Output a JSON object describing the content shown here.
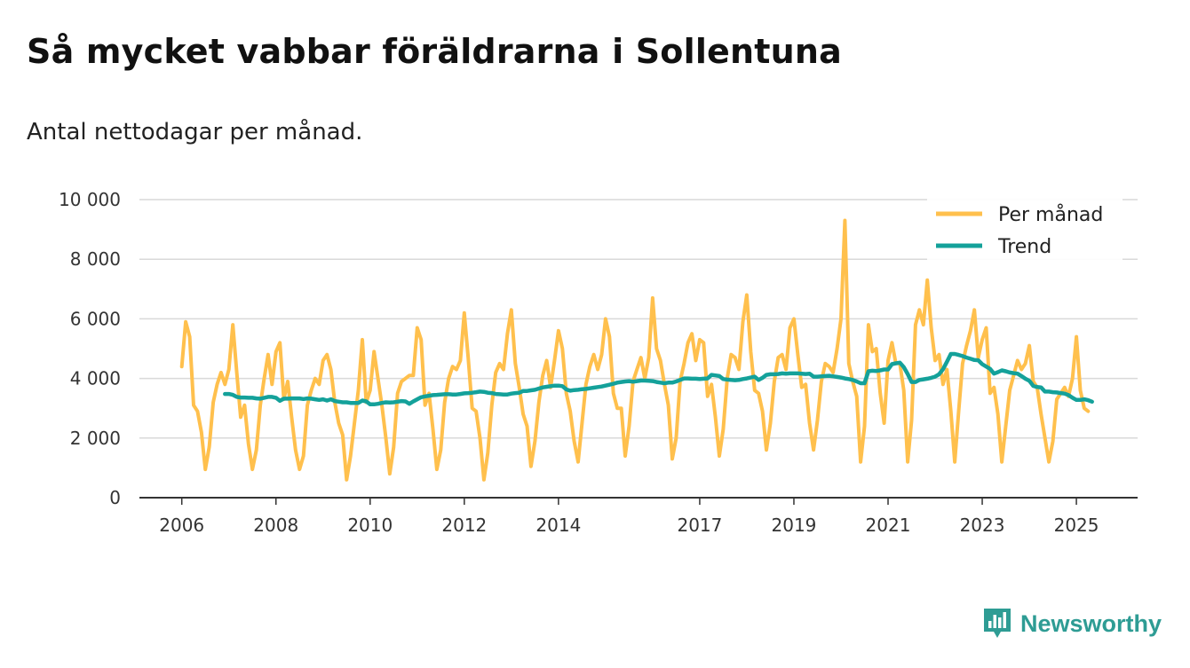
{
  "title": "Så mycket vabbar föräldrarna i Sollentuna",
  "subtitle": "Antal nettodagar per månad.",
  "brand": "Newsworthy",
  "chart_data": {
    "type": "line",
    "title": "Så mycket vabbar föräldrarna i Sollentuna",
    "subtitle": "Antal nettodagar per månad.",
    "xlabel": "",
    "ylabel": "",
    "x_ticks": [
      {
        "label": "2006",
        "year": 2006
      },
      {
        "label": "2008",
        "year": 2008
      },
      {
        "label": "2010",
        "year": 2010
      },
      {
        "label": "2012",
        "year": 2012
      },
      {
        "label": "2014",
        "year": 2014
      },
      {
        "label": "2017",
        "year": 2017
      },
      {
        "label": "2019",
        "year": 2019
      },
      {
        "label": "2021",
        "year": 2021
      },
      {
        "label": "2023",
        "year": 2023
      },
      {
        "label": "2025",
        "year": 2025
      }
    ],
    "y_ticks": [
      {
        "label": "0",
        "value": 0
      },
      {
        "label": "2 000",
        "value": 2000
      },
      {
        "label": "4 000",
        "value": 4000
      },
      {
        "label": "6 000",
        "value": 6000
      },
      {
        "label": "8 000",
        "value": 8000
      },
      {
        "label": "10 000",
        "value": 10000
      }
    ],
    "ylim": [
      0,
      10000
    ],
    "xlim": [
      2005.1,
      2026.3
    ],
    "grid": true,
    "legend_position": "top-right",
    "series": [
      {
        "name": "Per månad",
        "color": "#ffc04d",
        "x_start": 2006.0,
        "x_step": 0.0833333,
        "values": [
          4400,
          5900,
          5400,
          3100,
          2900,
          2200,
          950,
          1700,
          3200,
          3800,
          4200,
          3800,
          4300,
          5800,
          4200,
          2700,
          3100,
          1800,
          950,
          1600,
          3100,
          4000,
          4800,
          3800,
          4900,
          5200,
          3300,
          3900,
          2700,
          1600,
          950,
          1400,
          3100,
          3600,
          4000,
          3800,
          4600,
          4800,
          4300,
          3200,
          2500,
          2100,
          600,
          1400,
          2500,
          3600,
          5300,
          3200,
          3600,
          4900,
          4000,
          3100,
          2000,
          800,
          1700,
          3500,
          3900,
          4000,
          4100,
          4100,
          5700,
          5300,
          3100,
          3500,
          2300,
          950,
          1600,
          3200,
          4000,
          4400,
          4300,
          4600,
          6200,
          4700,
          3000,
          2900,
          2000,
          600,
          1500,
          3100,
          4200,
          4500,
          4300,
          5500,
          6300,
          4500,
          3700,
          2800,
          2400,
          1050,
          1900,
          3200,
          4100,
          4600,
          3700,
          4600,
          5600,
          5000,
          3500,
          2900,
          1900,
          1200,
          2500,
          3800,
          4400,
          4800,
          4300,
          4800,
          6000,
          5400,
          3500,
          3000,
          3000,
          1400,
          2400,
          3900,
          4300,
          4700,
          4000,
          4700,
          6700,
          5000,
          4600,
          3800,
          3100,
          1300,
          2000,
          3900,
          4500,
          5200,
          5500,
          4600,
          5300,
          5200,
          3400,
          3800,
          2700,
          1400,
          2300,
          4000,
          4800,
          4700,
          4300,
          5900,
          6800,
          4900,
          3600,
          3500,
          2900,
          1600,
          2500,
          3900,
          4700,
          4800,
          4300,
          5700,
          6000,
          4800,
          3700,
          3800,
          2500,
          1600,
          2600,
          3900,
          4500,
          4400,
          4200,
          5000,
          6000,
          9300,
          4500,
          3900,
          3400,
          1200,
          2400,
          5800,
          4900,
          5000,
          3500,
          2500,
          4600,
          5200,
          4500,
          4500,
          3600,
          1200,
          2600,
          5800,
          6300,
          5800,
          7300,
          5700,
          4600,
          4800,
          3800,
          4300,
          2900,
          1200,
          2900,
          4500,
          5100,
          5600,
          6300,
          4700,
          5300,
          5700,
          3500,
          3700,
          2800,
          1200,
          2400,
          3600,
          4100,
          4600,
          4300,
          4500,
          5100,
          3900,
          3700,
          2800,
          2000,
          1200,
          1900,
          3300,
          3500,
          3700,
          3400,
          4000,
          5400,
          3600,
          3000,
          2900
        ]
      },
      {
        "name": "Trend",
        "color": "#14a19a",
        "x_start": 2006.9167,
        "x_step": 0.0833333,
        "values": [
          3480,
          3480,
          3450,
          3380,
          3360,
          3360,
          3350,
          3350,
          3330,
          3320,
          3350,
          3380,
          3380,
          3350,
          3250,
          3320,
          3320,
          3330,
          3330,
          3330,
          3310,
          3330,
          3320,
          3300,
          3280,
          3300,
          3260,
          3300,
          3240,
          3220,
          3200,
          3200,
          3180,
          3180,
          3180,
          3260,
          3230,
          3130,
          3130,
          3150,
          3180,
          3200,
          3190,
          3200,
          3220,
          3240,
          3230,
          3150,
          3230,
          3300,
          3370,
          3400,
          3420,
          3440,
          3450,
          3460,
          3470,
          3470,
          3460,
          3460,
          3480,
          3500,
          3510,
          3520,
          3540,
          3560,
          3550,
          3520,
          3510,
          3480,
          3470,
          3460,
          3460,
          3490,
          3510,
          3520,
          3580,
          3580,
          3600,
          3620,
          3660,
          3700,
          3720,
          3740,
          3760,
          3760,
          3740,
          3630,
          3590,
          3610,
          3620,
          3640,
          3650,
          3670,
          3690,
          3710,
          3730,
          3760,
          3790,
          3820,
          3860,
          3880,
          3900,
          3910,
          3890,
          3910,
          3930,
          3930,
          3920,
          3910,
          3880,
          3860,
          3840,
          3860,
          3860,
          3900,
          3950,
          4000,
          4000,
          3990,
          3990,
          3980,
          3990,
          4000,
          4120,
          4100,
          4080,
          3980,
          3960,
          3950,
          3940,
          3950,
          3980,
          4000,
          4030,
          4060,
          3950,
          4020,
          4120,
          4140,
          4140,
          4150,
          4170,
          4160,
          4170,
          4170,
          4170,
          4160,
          4150,
          4160,
          4060,
          4060,
          4070,
          4080,
          4090,
          4070,
          4050,
          4030,
          4000,
          3980,
          3950,
          3900,
          3840,
          3840,
          4240,
          4260,
          4250,
          4270,
          4300,
          4300,
          4480,
          4510,
          4530,
          4380,
          4150,
          3880,
          3880,
          3950,
          3970,
          3990,
          4020,
          4060,
          4140,
          4310,
          4560,
          4820,
          4820,
          4790,
          4750,
          4700,
          4660,
          4620,
          4610,
          4480,
          4400,
          4320,
          4160,
          4210,
          4270,
          4240,
          4200,
          4180,
          4160,
          4080,
          3990,
          3920,
          3750,
          3710,
          3700,
          3560,
          3560,
          3540,
          3530,
          3510,
          3490,
          3440,
          3350,
          3280,
          3280,
          3300,
          3270,
          3220
        ]
      }
    ]
  }
}
